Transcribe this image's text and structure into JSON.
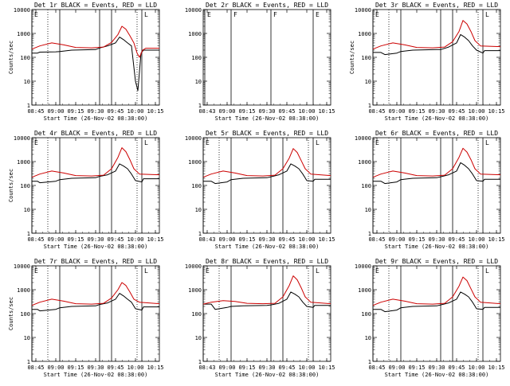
{
  "chart_data": [
    {
      "type": "line",
      "title": "Det 1r  BLACK = Events, RED = LLD",
      "xlabel": "Start Time (26-Nov-02 08:38:00)",
      "ylabel": "Counts/sec",
      "yscale": "log",
      "ylim": [
        1,
        10000
      ],
      "ytick_labels": [
        "1",
        "10",
        "100",
        "1000",
        "10000"
      ],
      "xtick_labels": [
        "08:45",
        "09:00",
        "09:15",
        "09:30",
        "09:45",
        "10:00",
        "10:15"
      ],
      "markers": [
        {
          "label": "E"
        }
      ],
      "empty": false,
      "series": [
        {
          "name": "BLACK = Events",
          "color": "#000000",
          "x": [
            8.7,
            8.77,
            8.8,
            9.0,
            9.05,
            9.2,
            9.5,
            9.55,
            9.65,
            9.75,
            9.8,
            9.85,
            9.9,
            9.95,
            10.0,
            10.03,
            10.07,
            10.1,
            10.3
          ],
          "y": [
            150,
            150,
            165,
            170,
            175,
            200,
            210,
            245,
            300,
            400,
            700,
            550,
            400,
            300,
            10,
            4,
            150,
            200,
            200
          ]
        },
        {
          "name": "RED = LLD",
          "color": "#cc0000",
          "x": [
            8.7,
            8.8,
            8.95,
            9.1,
            9.25,
            9.45,
            9.6,
            9.7,
            9.78,
            9.83,
            9.88,
            9.93,
            9.98,
            10.02,
            10.05,
            10.09,
            10.13,
            10.3
          ],
          "y": [
            220,
            300,
            400,
            330,
            260,
            250,
            270,
            420,
            900,
            2000,
            1500,
            800,
            400,
            150,
            100,
            200,
            240,
            240
          ]
        }
      ]
    },
    {
      "type": "line",
      "title": "Det 2r  BLACK = Events, RED = LLD",
      "xlabel": "Start Time (26-Nov-02 08:38:00)",
      "ylabel": "",
      "yscale": "log",
      "ylim": [
        1,
        10000
      ],
      "ytick_labels": [
        "1",
        "10",
        "100",
        "1000",
        "10000"
      ],
      "xtick_labels": [
        "08:43",
        "09:00",
        "09:15",
        "09:30",
        "09:45",
        "10:00",
        "10:15"
      ],
      "markers": [
        {
          "label": "E"
        },
        {
          "label": "F"
        },
        {
          "label": "F"
        },
        {
          "label": "E"
        }
      ],
      "empty": true,
      "series": []
    },
    {
      "type": "line",
      "title": "Det 3r  BLACK = Events, RED = LLD",
      "xlabel": "Start Time (26-Nov-02 08:38:00)",
      "ylabel": "Counts/sec",
      "yscale": "log",
      "ylim": [
        1,
        10000
      ],
      "ytick_labels": [
        "1",
        "10",
        "100",
        "1000",
        "10000"
      ],
      "xtick_labels": [
        "08:45",
        "09:00",
        "09:15",
        "09:30",
        "09:45",
        "10:00",
        "10:15"
      ],
      "markers": [
        {
          "label": "E"
        }
      ],
      "empty": false,
      "series": [
        {
          "name": "BLACK = Events",
          "color": "#000000",
          "x": [
            8.7,
            8.8,
            8.85,
            9.0,
            9.05,
            9.2,
            9.5,
            9.55,
            9.65,
            9.75,
            9.8,
            9.85,
            9.9,
            9.95,
            10.0,
            10.08,
            10.1,
            10.3
          ],
          "y": [
            160,
            160,
            130,
            150,
            175,
            200,
            210,
            210,
            270,
            400,
            900,
            700,
            500,
            300,
            200,
            150,
            190,
            190
          ]
        },
        {
          "name": "RED = LLD",
          "color": "#cc0000",
          "x": [
            8.7,
            8.8,
            8.95,
            9.1,
            9.25,
            9.45,
            9.6,
            9.7,
            9.78,
            9.83,
            9.88,
            9.93,
            9.98,
            10.05,
            10.3
          ],
          "y": [
            220,
            300,
            400,
            330,
            260,
            250,
            270,
            450,
            1200,
            3500,
            2500,
            1200,
            500,
            300,
            280
          ]
        }
      ]
    },
    {
      "type": "line",
      "title": "Det 4r  BLACK = Events, RED = LLD",
      "xlabel": "Start Time (26-Nov-02 08:38:00)",
      "ylabel": "Counts/sec",
      "yscale": "log",
      "ylim": [
        1,
        10000
      ],
      "ytick_labels": [
        "1",
        "10",
        "100",
        "1000",
        "10000"
      ],
      "xtick_labels": [
        "08:45",
        "09:00",
        "09:15",
        "09:30",
        "09:45",
        "10:00",
        "10:15"
      ],
      "markers": [
        {
          "label": "E"
        }
      ],
      "empty": false,
      "series": [
        {
          "name": "BLACK = Events",
          "color": "#000000",
          "x": [
            8.7,
            8.77,
            8.8,
            9.0,
            9.05,
            9.2,
            9.5,
            9.55,
            9.65,
            9.75,
            9.8,
            9.85,
            9.9,
            9.95,
            10.0,
            10.08,
            10.1,
            10.3
          ],
          "y": [
            150,
            150,
            130,
            150,
            175,
            200,
            210,
            240,
            280,
            400,
            800,
            650,
            500,
            300,
            160,
            140,
            190,
            190
          ]
        },
        {
          "name": "RED = LLD",
          "color": "#cc0000",
          "x": [
            8.7,
            8.8,
            8.95,
            9.1,
            9.25,
            9.45,
            9.6,
            9.7,
            9.78,
            9.83,
            9.88,
            9.93,
            9.98,
            10.05,
            10.3
          ],
          "y": [
            220,
            300,
            400,
            330,
            260,
            250,
            270,
            500,
            1500,
            3800,
            2600,
            1200,
            500,
            300,
            280
          ]
        }
      ]
    },
    {
      "type": "line",
      "title": "Det 5r  BLACK = Events, RED = LLD",
      "xlabel": "Start Time (26-Nov-02 08:38:00)",
      "ylabel": "",
      "yscale": "log",
      "ylim": [
        1,
        10000
      ],
      "ytick_labels": [
        "1",
        "10",
        "100",
        "1000",
        "10000"
      ],
      "xtick_labels": [
        "08:43",
        "09:00",
        "09:15",
        "09:30",
        "09:45",
        "10:00",
        "10:15"
      ],
      "markers": [
        {
          "label": "E"
        }
      ],
      "empty": false,
      "series": [
        {
          "name": "BLACK = Events",
          "color": "#000000",
          "x": [
            8.7,
            8.8,
            8.85,
            9.0,
            9.05,
            9.2,
            9.5,
            9.55,
            9.65,
            9.75,
            9.8,
            9.85,
            9.9,
            9.95,
            10.0,
            10.08,
            10.1,
            10.3
          ],
          "y": [
            150,
            150,
            120,
            140,
            175,
            200,
            210,
            230,
            280,
            400,
            800,
            650,
            500,
            300,
            160,
            150,
            180,
            180
          ]
        },
        {
          "name": "RED = LLD",
          "color": "#cc0000",
          "x": [
            8.7,
            8.8,
            8.95,
            9.1,
            9.25,
            9.45,
            9.6,
            9.7,
            9.78,
            9.83,
            9.88,
            9.93,
            9.98,
            10.05,
            10.3
          ],
          "y": [
            220,
            300,
            400,
            330,
            260,
            250,
            270,
            500,
            1400,
            3500,
            2400,
            1100,
            500,
            300,
            260
          ]
        }
      ]
    },
    {
      "type": "line",
      "title": "Det 6r  BLACK = Events, RED = LLD",
      "xlabel": "Start Time (26-Nov-02 08:38:00)",
      "ylabel": "",
      "yscale": "log",
      "ylim": [
        1,
        10000
      ],
      "ytick_labels": [
        "1",
        "10",
        "100",
        "1000",
        "10000"
      ],
      "xtick_labels": [
        "08:45",
        "09:00",
        "09:15",
        "09:30",
        "09:45",
        "10:00",
        "10:15"
      ],
      "markers": [
        {
          "label": "E"
        }
      ],
      "empty": false,
      "series": [
        {
          "name": "BLACK = Events",
          "color": "#000000",
          "x": [
            8.7,
            8.8,
            8.85,
            9.0,
            9.05,
            9.2,
            9.5,
            9.55,
            9.65,
            9.75,
            9.8,
            9.85,
            9.9,
            9.95,
            10.0,
            10.08,
            10.1,
            10.3
          ],
          "y": [
            150,
            150,
            120,
            140,
            175,
            200,
            210,
            230,
            280,
            400,
            900,
            700,
            500,
            300,
            160,
            150,
            180,
            180
          ]
        },
        {
          "name": "RED = LLD",
          "color": "#cc0000",
          "x": [
            8.7,
            8.8,
            8.95,
            9.1,
            9.25,
            9.45,
            9.6,
            9.7,
            9.78,
            9.83,
            9.88,
            9.93,
            9.98,
            10.05,
            10.3
          ],
          "y": [
            220,
            300,
            400,
            330,
            260,
            250,
            270,
            500,
            1500,
            3600,
            2500,
            1200,
            500,
            300,
            280
          ]
        }
      ]
    },
    {
      "type": "line",
      "title": "Det 7r  BLACK = Events, RED = LLD",
      "xlabel": "Start Time (26-Nov-02 08:38:00)",
      "ylabel": "Counts/sec",
      "yscale": "log",
      "ylim": [
        1,
        10000
      ],
      "ytick_labels": [
        "1",
        "10",
        "100",
        "1000",
        "10000"
      ],
      "xtick_labels": [
        "08:45",
        "09:00",
        "09:15",
        "09:30",
        "09:45",
        "10:00",
        "10:15"
      ],
      "markers": [
        {
          "label": "E"
        }
      ],
      "empty": false,
      "series": [
        {
          "name": "BLACK = Events",
          "color": "#000000",
          "x": [
            8.7,
            8.77,
            8.8,
            9.0,
            9.05,
            9.2,
            9.5,
            9.55,
            9.65,
            9.75,
            9.8,
            9.85,
            9.9,
            9.95,
            10.0,
            10.08,
            10.1,
            10.3
          ],
          "y": [
            150,
            150,
            130,
            150,
            175,
            200,
            210,
            240,
            280,
            400,
            700,
            550,
            400,
            300,
            160,
            140,
            190,
            190
          ]
        },
        {
          "name": "RED = LLD",
          "color": "#cc0000",
          "x": [
            8.7,
            8.8,
            8.95,
            9.1,
            9.25,
            9.45,
            9.6,
            9.7,
            9.78,
            9.83,
            9.88,
            9.93,
            9.98,
            10.05,
            10.3
          ],
          "y": [
            220,
            300,
            400,
            330,
            260,
            250,
            270,
            450,
            1000,
            2000,
            1500,
            800,
            400,
            300,
            260
          ]
        }
      ]
    },
    {
      "type": "line",
      "title": "Det 8r  BLACK = Events, RED = LLD",
      "xlabel": "Start Time (26-Nov-02 08:38:00)",
      "ylabel": "",
      "yscale": "log",
      "ylim": [
        1,
        10000
      ],
      "ytick_labels": [
        "1",
        "10",
        "100",
        "1000",
        "10000"
      ],
      "xtick_labels": [
        "08:43",
        "09:00",
        "09:15",
        "09:30",
        "09:45",
        "10:00",
        "10:15"
      ],
      "markers": [
        {
          "label": "E"
        }
      ],
      "empty": false,
      "series": [
        {
          "name": "BLACK = Events",
          "color": "#000000",
          "x": [
            8.7,
            8.8,
            8.85,
            9.0,
            9.05,
            9.2,
            9.5,
            9.55,
            9.65,
            9.75,
            9.8,
            9.85,
            9.9,
            9.95,
            10.0,
            10.08,
            10.1,
            10.3
          ],
          "y": [
            250,
            250,
            150,
            180,
            200,
            210,
            220,
            230,
            270,
            400,
            800,
            650,
            500,
            300,
            200,
            180,
            220,
            220
          ]
        },
        {
          "name": "RED = LLD",
          "color": "#cc0000",
          "x": [
            8.7,
            8.8,
            8.95,
            9.1,
            9.25,
            9.45,
            9.6,
            9.7,
            9.78,
            9.83,
            9.88,
            9.93,
            9.98,
            10.05,
            10.3
          ],
          "y": [
            250,
            300,
            350,
            320,
            270,
            260,
            270,
            500,
            1500,
            3800,
            2600,
            1200,
            500,
            300,
            260
          ]
        }
      ]
    },
    {
      "type": "line",
      "title": "Det 9r  BLACK = Events, RED = LLD",
      "xlabel": "Start Time (26-Nov-02 08:38:00)",
      "ylabel": "",
      "yscale": "log",
      "ylim": [
        1,
        10000
      ],
      "ytick_labels": [
        "1",
        "10",
        "100",
        "1000",
        "10000"
      ],
      "xtick_labels": [
        "08:45",
        "09:00",
        "09:15",
        "09:30",
        "09:45",
        "10:00",
        "10:15"
      ],
      "markers": [
        {
          "label": "E"
        }
      ],
      "empty": false,
      "series": [
        {
          "name": "BLACK = Events",
          "color": "#000000",
          "x": [
            8.7,
            8.8,
            8.85,
            9.0,
            9.05,
            9.2,
            9.5,
            9.55,
            9.65,
            9.75,
            9.8,
            9.85,
            9.9,
            9.95,
            10.0,
            10.08,
            10.1,
            10.3
          ],
          "y": [
            150,
            150,
            120,
            140,
            175,
            200,
            210,
            230,
            280,
            400,
            800,
            650,
            500,
            300,
            160,
            150,
            180,
            180
          ]
        },
        {
          "name": "RED = LLD",
          "color": "#cc0000",
          "x": [
            8.7,
            8.8,
            8.95,
            9.1,
            9.25,
            9.45,
            9.6,
            9.7,
            9.78,
            9.83,
            9.88,
            9.93,
            9.98,
            10.05,
            10.3
          ],
          "y": [
            220,
            300,
            400,
            330,
            260,
            250,
            270,
            500,
            1400,
            3400,
            2400,
            1100,
            500,
            300,
            260
          ]
        }
      ]
    }
  ]
}
